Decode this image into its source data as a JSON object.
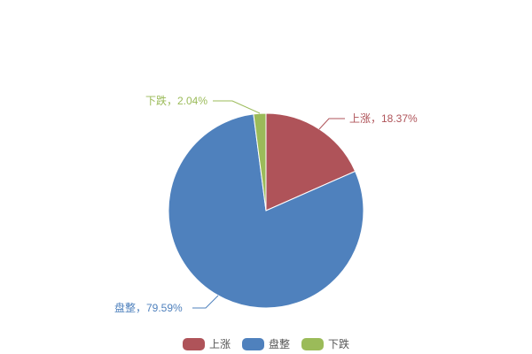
{
  "chart_data": {
    "type": "pie",
    "title": "",
    "start_angle": "top",
    "direction": "clockwise",
    "legend_position": "bottom",
    "background": "#ffffff",
    "slices": [
      {
        "name": "上涨",
        "value": 18.37,
        "percent_label": "18.37%",
        "callout": "上涨，18.37%",
        "color": "#AF5359"
      },
      {
        "name": "盘整",
        "value": 79.59,
        "percent_label": "79.59%",
        "callout": "盘整，79.59%",
        "color": "#4F81BD"
      },
      {
        "name": "下跌",
        "value": 2.04,
        "percent_label": "2.04%",
        "callout": "下跌，2.04%",
        "color": "#9BBB59"
      }
    ]
  },
  "legend": {
    "items": [
      {
        "label": "上涨",
        "color": "#AF5359"
      },
      {
        "label": "盘整",
        "color": "#4F81BD"
      },
      {
        "label": "下跌",
        "color": "#9BBB59"
      }
    ]
  }
}
